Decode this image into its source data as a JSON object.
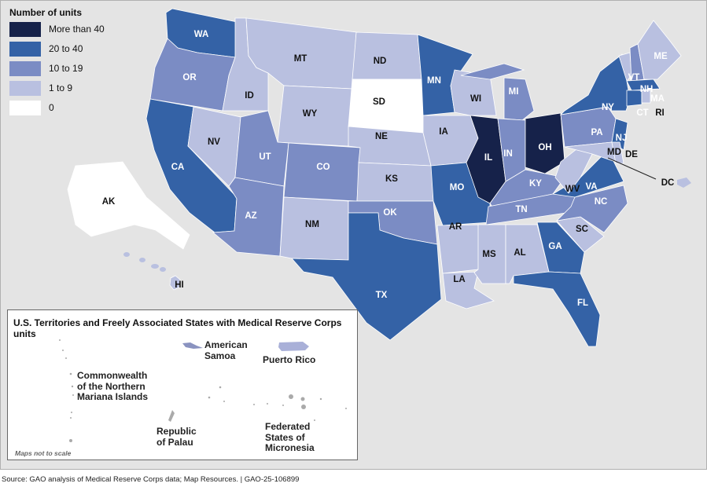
{
  "legend": {
    "title": "Number of units",
    "items": [
      {
        "label": "More than 40",
        "color": "#16224a"
      },
      {
        "label": "20 to 40",
        "color": "#3462a6"
      },
      {
        "label": "10 to 19",
        "color": "#7b8cc4"
      },
      {
        "label": "1 to 9",
        "color": "#b9c0e0"
      },
      {
        "label": "0",
        "color": "#ffffff"
      }
    ]
  },
  "states": [
    {
      "abbr": "WA",
      "cat": 1
    },
    {
      "abbr": "OR",
      "cat": 2
    },
    {
      "abbr": "CA",
      "cat": 1
    },
    {
      "abbr": "NV",
      "cat": 3
    },
    {
      "abbr": "ID",
      "cat": 3
    },
    {
      "abbr": "MT",
      "cat": 3
    },
    {
      "abbr": "WY",
      "cat": 3
    },
    {
      "abbr": "UT",
      "cat": 2
    },
    {
      "abbr": "CO",
      "cat": 2
    },
    {
      "abbr": "AZ",
      "cat": 2
    },
    {
      "abbr": "NM",
      "cat": 3
    },
    {
      "abbr": "ND",
      "cat": 3
    },
    {
      "abbr": "SD",
      "cat": 4
    },
    {
      "abbr": "NE",
      "cat": 3
    },
    {
      "abbr": "KS",
      "cat": 3
    },
    {
      "abbr": "OK",
      "cat": 2
    },
    {
      "abbr": "TX",
      "cat": 1
    },
    {
      "abbr": "MN",
      "cat": 1
    },
    {
      "abbr": "IA",
      "cat": 3
    },
    {
      "abbr": "MO",
      "cat": 1
    },
    {
      "abbr": "AR",
      "cat": 3
    },
    {
      "abbr": "LA",
      "cat": 3
    },
    {
      "abbr": "WI",
      "cat": 3
    },
    {
      "abbr": "IL",
      "cat": 0
    },
    {
      "abbr": "MI",
      "cat": 2
    },
    {
      "abbr": "IN",
      "cat": 2
    },
    {
      "abbr": "OH",
      "cat": 0
    },
    {
      "abbr": "KY",
      "cat": 2
    },
    {
      "abbr": "TN",
      "cat": 2
    },
    {
      "abbr": "MS",
      "cat": 3
    },
    {
      "abbr": "AL",
      "cat": 3
    },
    {
      "abbr": "GA",
      "cat": 1
    },
    {
      "abbr": "FL",
      "cat": 1
    },
    {
      "abbr": "SC",
      "cat": 3
    },
    {
      "abbr": "NC",
      "cat": 2
    },
    {
      "abbr": "VA",
      "cat": 1
    },
    {
      "abbr": "WV",
      "cat": 3
    },
    {
      "abbr": "PA",
      "cat": 2
    },
    {
      "abbr": "NY",
      "cat": 1
    },
    {
      "abbr": "NJ",
      "cat": 1
    },
    {
      "abbr": "MD",
      "cat": 3
    },
    {
      "abbr": "DE",
      "cat": 3
    },
    {
      "abbr": "VT",
      "cat": 3
    },
    {
      "abbr": "NH",
      "cat": 2
    },
    {
      "abbr": "ME",
      "cat": 3
    },
    {
      "abbr": "MA",
      "cat": 1
    },
    {
      "abbr": "CT",
      "cat": 1
    },
    {
      "abbr": "RI",
      "cat": 3
    },
    {
      "abbr": "DC",
      "cat": 3
    },
    {
      "abbr": "AK",
      "cat": 4
    },
    {
      "abbr": "HI",
      "cat": 3
    }
  ],
  "territories": {
    "title": "U.S. Territories and Freely Associated States with Medical Reserve Corps units",
    "american_samoa": "American Samoa",
    "puerto_rico": "Puerto Rico",
    "cnmi": "Commonwealth of the Northern Mariana Islands",
    "palau": "Republic of Palau",
    "micronesia": "Federated States of Micronesia",
    "note": "Maps not to scale"
  },
  "source": "Source: GAO analysis of Medical Reserve Corps data; Map Resources.  |  GAO-25-106899"
}
